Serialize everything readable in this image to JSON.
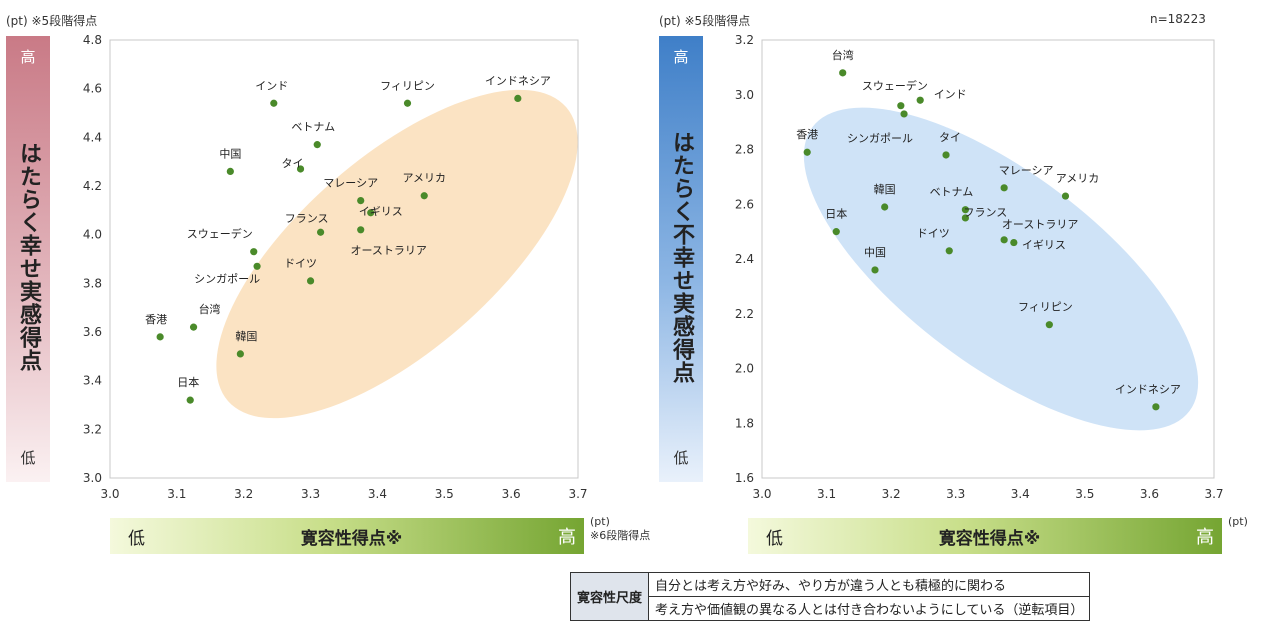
{
  "left": {
    "unit_note": "(pt) ※5段階得点",
    "ybar": {
      "high": "高",
      "title": "はたらく幸せ実感得点",
      "low": "低"
    },
    "xbar": {
      "low": "低",
      "title": "寛容性得点※",
      "high": "高"
    },
    "x_note": "(pt)\n※6段階得点",
    "ellipse_color": "#fbe3c3",
    "chart_data": {
      "type": "scatter",
      "xlim": [
        3.0,
        3.7
      ],
      "ylim": [
        3.0,
        4.8
      ],
      "xticks": [
        "3.0",
        "3.1",
        "3.2",
        "3.3",
        "3.4",
        "3.5",
        "3.6",
        "3.7"
      ],
      "yticks": [
        "3.0",
        "3.2",
        "3.4",
        "3.6",
        "3.8",
        "4.0",
        "4.2",
        "4.4",
        "4.6",
        "4.8"
      ],
      "point_color": "#4a8a2a",
      "points": [
        {
          "label": "インド",
          "x": 3.245,
          "y": 4.54
        },
        {
          "label": "フィリピン",
          "x": 3.445,
          "y": 4.54
        },
        {
          "label": "インドネシア",
          "x": 3.61,
          "y": 4.56
        },
        {
          "label": "ベトナム",
          "x": 3.31,
          "y": 4.37
        },
        {
          "label": "タイ",
          "x": 3.285,
          "y": 4.27
        },
        {
          "label": "中国",
          "x": 3.18,
          "y": 4.26
        },
        {
          "label": "マレーシア",
          "x": 3.375,
          "y": 4.14
        },
        {
          "label": "アメリカ",
          "x": 3.47,
          "y": 4.16
        },
        {
          "label": "イギリス",
          "x": 3.39,
          "y": 4.09
        },
        {
          "label": "フランス",
          "x": 3.315,
          "y": 4.01
        },
        {
          "label": "オーストラリア",
          "x": 3.375,
          "y": 4.02
        },
        {
          "label": "スウェーデン",
          "x": 3.215,
          "y": 3.93
        },
        {
          "label": "シンガポール",
          "x": 3.22,
          "y": 3.87
        },
        {
          "label": "ドイツ",
          "x": 3.3,
          "y": 3.81
        },
        {
          "label": "香港",
          "x": 3.075,
          "y": 3.58
        },
        {
          "label": "台湾",
          "x": 3.125,
          "y": 3.62
        },
        {
          "label": "韓国",
          "x": 3.195,
          "y": 3.51
        },
        {
          "label": "日本",
          "x": 3.12,
          "y": 3.32
        }
      ]
    }
  },
  "right": {
    "unit_note": "(pt) ※5段階得点",
    "n_label": "n=18223",
    "ybar": {
      "high": "高",
      "title": "はたらく不幸せ実感得点",
      "low": "低"
    },
    "xbar": {
      "low": "低",
      "title": "寛容性得点※",
      "high": "高"
    },
    "x_note": "(pt)",
    "ellipse_color": "#cfe3f7",
    "chart_data": {
      "type": "scatter",
      "xlim": [
        3.0,
        3.7
      ],
      "ylim": [
        1.6,
        3.2
      ],
      "xticks": [
        "3.0",
        "3.1",
        "3.2",
        "3.3",
        "3.4",
        "3.5",
        "3.6",
        "3.7"
      ],
      "yticks": [
        "1.6",
        "1.8",
        "2.0",
        "2.2",
        "2.4",
        "2.6",
        "2.8",
        "3.0",
        "3.2"
      ],
      "point_color": "#4a8a2a",
      "points": [
        {
          "label": "台湾",
          "x": 3.125,
          "y": 3.08
        },
        {
          "label": "スウェーデン",
          "x": 3.215,
          "y": 2.96
        },
        {
          "label": "インド",
          "x": 3.245,
          "y": 2.98
        },
        {
          "label": "シンガポール",
          "x": 3.22,
          "y": 2.93
        },
        {
          "label": "タイ",
          "x": 3.285,
          "y": 2.78
        },
        {
          "label": "香港",
          "x": 3.07,
          "y": 2.79
        },
        {
          "label": "マレーシア",
          "x": 3.375,
          "y": 2.66
        },
        {
          "label": "アメリカ",
          "x": 3.47,
          "y": 2.63
        },
        {
          "label": "韓国",
          "x": 3.19,
          "y": 2.59
        },
        {
          "label": "ベトナム",
          "x": 3.315,
          "y": 2.58
        },
        {
          "label": "フランス",
          "x": 3.315,
          "y": 2.55
        },
        {
          "label": "オーストラリア",
          "x": 3.375,
          "y": 2.47
        },
        {
          "label": "イギリス",
          "x": 3.39,
          "y": 2.46
        },
        {
          "label": "日本",
          "x": 3.115,
          "y": 2.5
        },
        {
          "label": "ドイツ",
          "x": 3.29,
          "y": 2.43
        },
        {
          "label": "中国",
          "x": 3.175,
          "y": 2.36
        },
        {
          "label": "フィリピン",
          "x": 3.445,
          "y": 2.16
        },
        {
          "label": "インドネシア",
          "x": 3.61,
          "y": 1.86
        }
      ]
    }
  },
  "scale_table": {
    "head": "寛容性尺度",
    "rows": [
      "自分とは考え方や好み、やり方が違う人とも積極的に関わる",
      "考え方や価値観の異なる人とは付き合わないようにしている（逆転項目）"
    ]
  }
}
